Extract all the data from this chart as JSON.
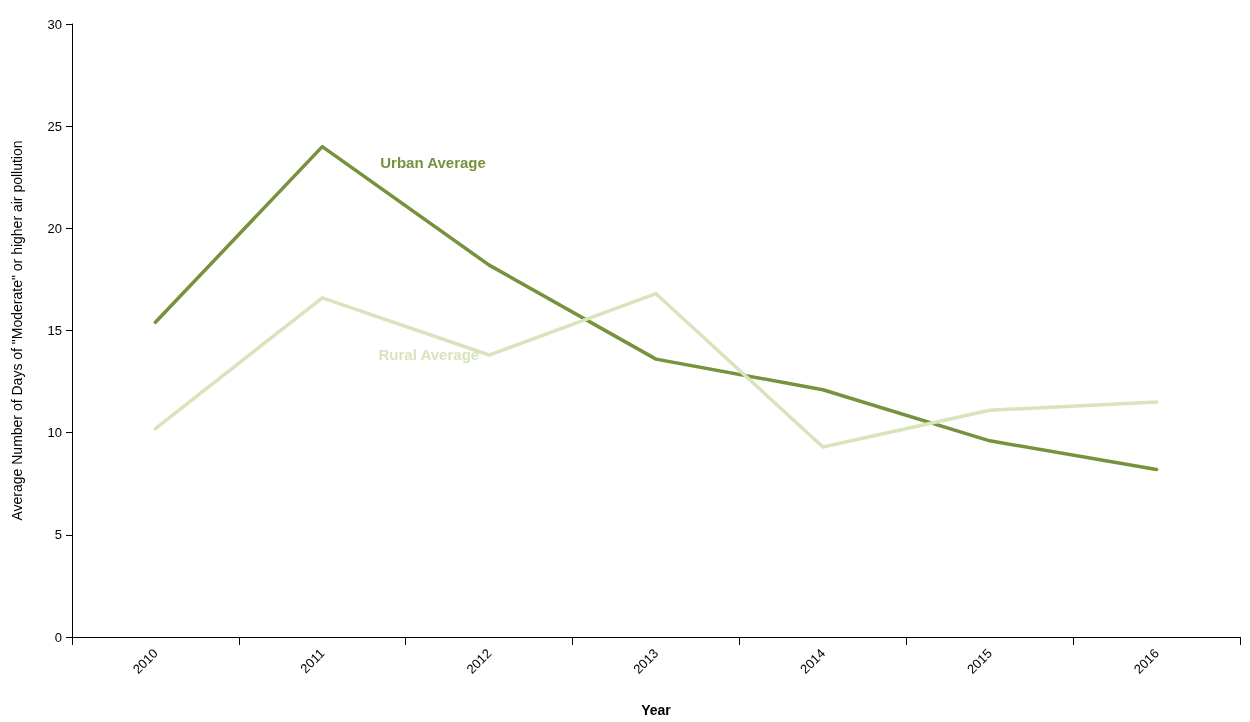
{
  "chart_data": {
    "type": "line",
    "xlabel": "Year",
    "ylabel": "Average Number of Days of \"Moderate\" or higher air pollution",
    "categories": [
      "2010",
      "2011",
      "2012",
      "2013",
      "2014",
      "2015",
      "2016"
    ],
    "series": [
      {
        "name": "Urban Average",
        "color": "#76923c",
        "values": [
          15.4,
          24.0,
          18.2,
          13.6,
          12.1,
          9.6,
          8.2
        ]
      },
      {
        "name": "Rural Average",
        "color": "#d7e4bc",
        "values": [
          10.2,
          16.6,
          13.8,
          16.8,
          9.3,
          11.1,
          11.5
        ]
      }
    ],
    "ylim": [
      0,
      30
    ],
    "yticks": [
      0,
      5,
      10,
      15,
      20,
      25,
      30
    ],
    "grid": false,
    "legend": false,
    "marker": "none",
    "line_style": "solid"
  }
}
